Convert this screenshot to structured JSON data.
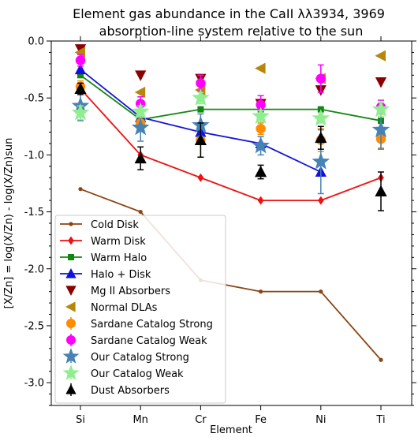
{
  "chart_data": {
    "type": "line",
    "title": "Element gas abundance in the CaII λλ3934, 3969",
    "subtitle": "absorption-line system relative to the sun",
    "xlabel": "Element",
    "ylabel": "[X/Zn] = log(X/Zn) - log(X/Zn)sun",
    "categories": [
      "Si",
      "Mn",
      "Cr",
      "Fe",
      "Ni",
      "Ti"
    ],
    "ylim": [
      -3.2,
      0.0
    ],
    "yticks": [
      "0.0",
      "-0.5",
      "-1.0",
      "-1.5",
      "-2.0",
      "-2.5",
      "-3.0"
    ],
    "ytick_values": [
      0.0,
      -0.5,
      -1.0,
      -1.5,
      -2.0,
      -2.5,
      -3.0
    ],
    "grid": false,
    "legend_position": "lower-left",
    "series": [
      {
        "name": "Cold Disk",
        "kind": "line",
        "marker": "circle-small",
        "color": "#8B4513",
        "values": [
          -1.3,
          -1.5,
          -2.1,
          -2.2,
          -2.2,
          -2.8
        ]
      },
      {
        "name": "Warm Disk",
        "kind": "line",
        "marker": "diamond",
        "color": "#ee1111",
        "values": [
          -0.42,
          -1.0,
          -1.2,
          -1.4,
          -1.4,
          -1.2
        ]
      },
      {
        "name": "Warm Halo",
        "kind": "line",
        "marker": "square",
        "color": "#118811",
        "values": [
          -0.3,
          -0.69,
          -0.6,
          -0.6,
          -0.6,
          -0.7
        ]
      },
      {
        "name": "Halo + Disk",
        "kind": "line",
        "marker": "triangle-up",
        "color": "#1111dd",
        "values": [
          -0.25,
          -0.67,
          -0.8,
          -0.9,
          -1.15,
          null
        ]
      },
      {
        "name": "Mg II Absorbers",
        "kind": "scatter",
        "marker": "triangle-down",
        "color": "#8B0000",
        "values": [
          -0.07,
          -0.3,
          -0.33,
          -0.55,
          -0.43,
          -0.36
        ]
      },
      {
        "name": "Normal DLAs",
        "kind": "scatter",
        "marker": "triangle-left",
        "color": "#B8860B",
        "values": [
          -0.1,
          -0.45,
          -0.43,
          -0.24,
          -0.33,
          -0.13
        ]
      },
      {
        "name": "Sardane Catalog Strong",
        "kind": "errorbar",
        "marker": "circle",
        "color": "#FF8C00",
        "values": [
          -0.4,
          -0.72,
          -0.87,
          -0.77,
          -0.87,
          -0.86
        ],
        "errors": [
          0.05,
          0.06,
          0.15,
          0.05,
          0.1,
          0.08
        ]
      },
      {
        "name": "Sardane Catalog Weak",
        "kind": "errorbar",
        "marker": "circle",
        "color": "#FF00FF",
        "values": [
          -0.17,
          -0.55,
          -0.37,
          -0.56,
          -0.33,
          -0.58
        ],
        "errors": [
          0.05,
          0.06,
          0.07,
          0.08,
          0.12,
          0.06
        ]
      },
      {
        "name": "Our Catalog Strong",
        "kind": "errorbar",
        "marker": "star",
        "color": "#4682B4",
        "values": [
          -0.57,
          -0.76,
          -0.74,
          -0.92,
          -1.06,
          -0.78
        ],
        "errors": [
          0.13,
          0.12,
          0.1,
          0.08,
          0.28,
          0.17
        ]
      },
      {
        "name": "Our Catalog Weak",
        "kind": "errorbar",
        "marker": "star",
        "color": "#90EE90",
        "values": [
          -0.63,
          -0.62,
          -0.5,
          -0.66,
          -0.68,
          -0.6
        ],
        "errors": [
          0.06,
          0.05,
          0.05,
          0.05,
          0.04,
          0.06
        ]
      },
      {
        "name": "Dust Absorbers",
        "kind": "errorbar",
        "marker": "triangle-up",
        "color": "#000000",
        "values": [
          -0.42,
          -1.03,
          -0.87,
          -1.15,
          -0.85,
          -1.32
        ],
        "errors": [
          0.05,
          0.1,
          0.15,
          0.06,
          0.1,
          0.17
        ]
      }
    ]
  }
}
